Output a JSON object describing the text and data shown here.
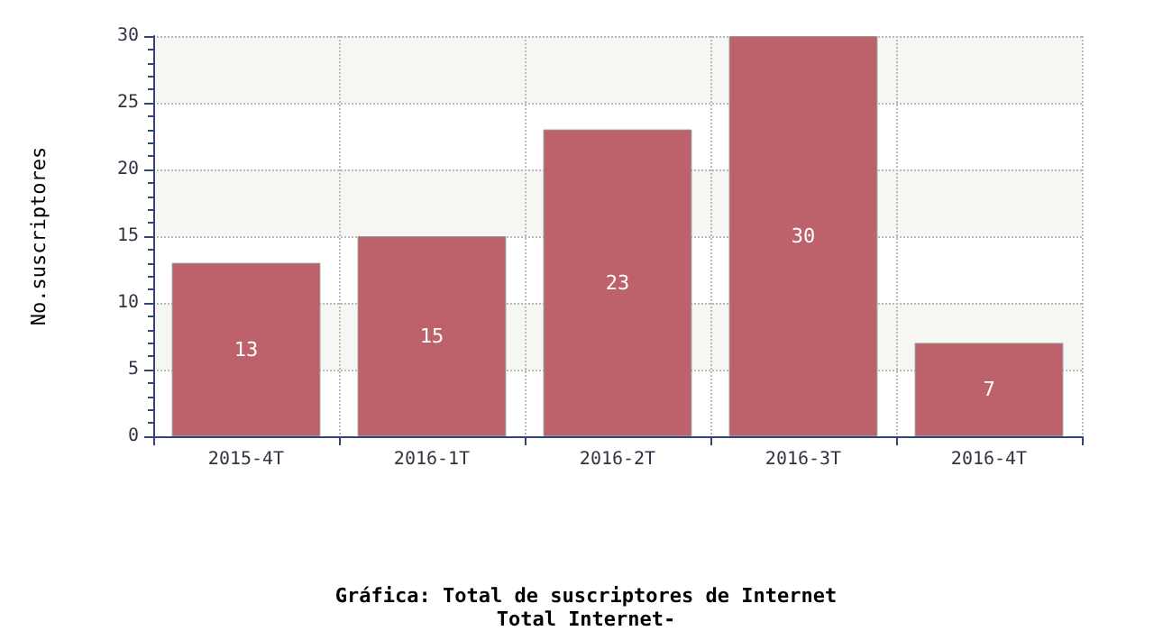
{
  "chart_data": {
    "type": "bar",
    "title": "Gráfica: Total de suscriptores de Internet",
    "subtitle": "Total Internet-",
    "ylabel": "No.suscriptores",
    "categories": [
      "2015-4T",
      "2016-1T",
      "2016-2T",
      "2016-3T",
      "2016-4T"
    ],
    "values": [
      13,
      15,
      23,
      30,
      7
    ],
    "color": "#bd616a",
    "ylim": [
      0,
      30
    ],
    "yticks": [
      0,
      5,
      10,
      15,
      20,
      25,
      30
    ],
    "grid": true,
    "data_labels": true
  }
}
